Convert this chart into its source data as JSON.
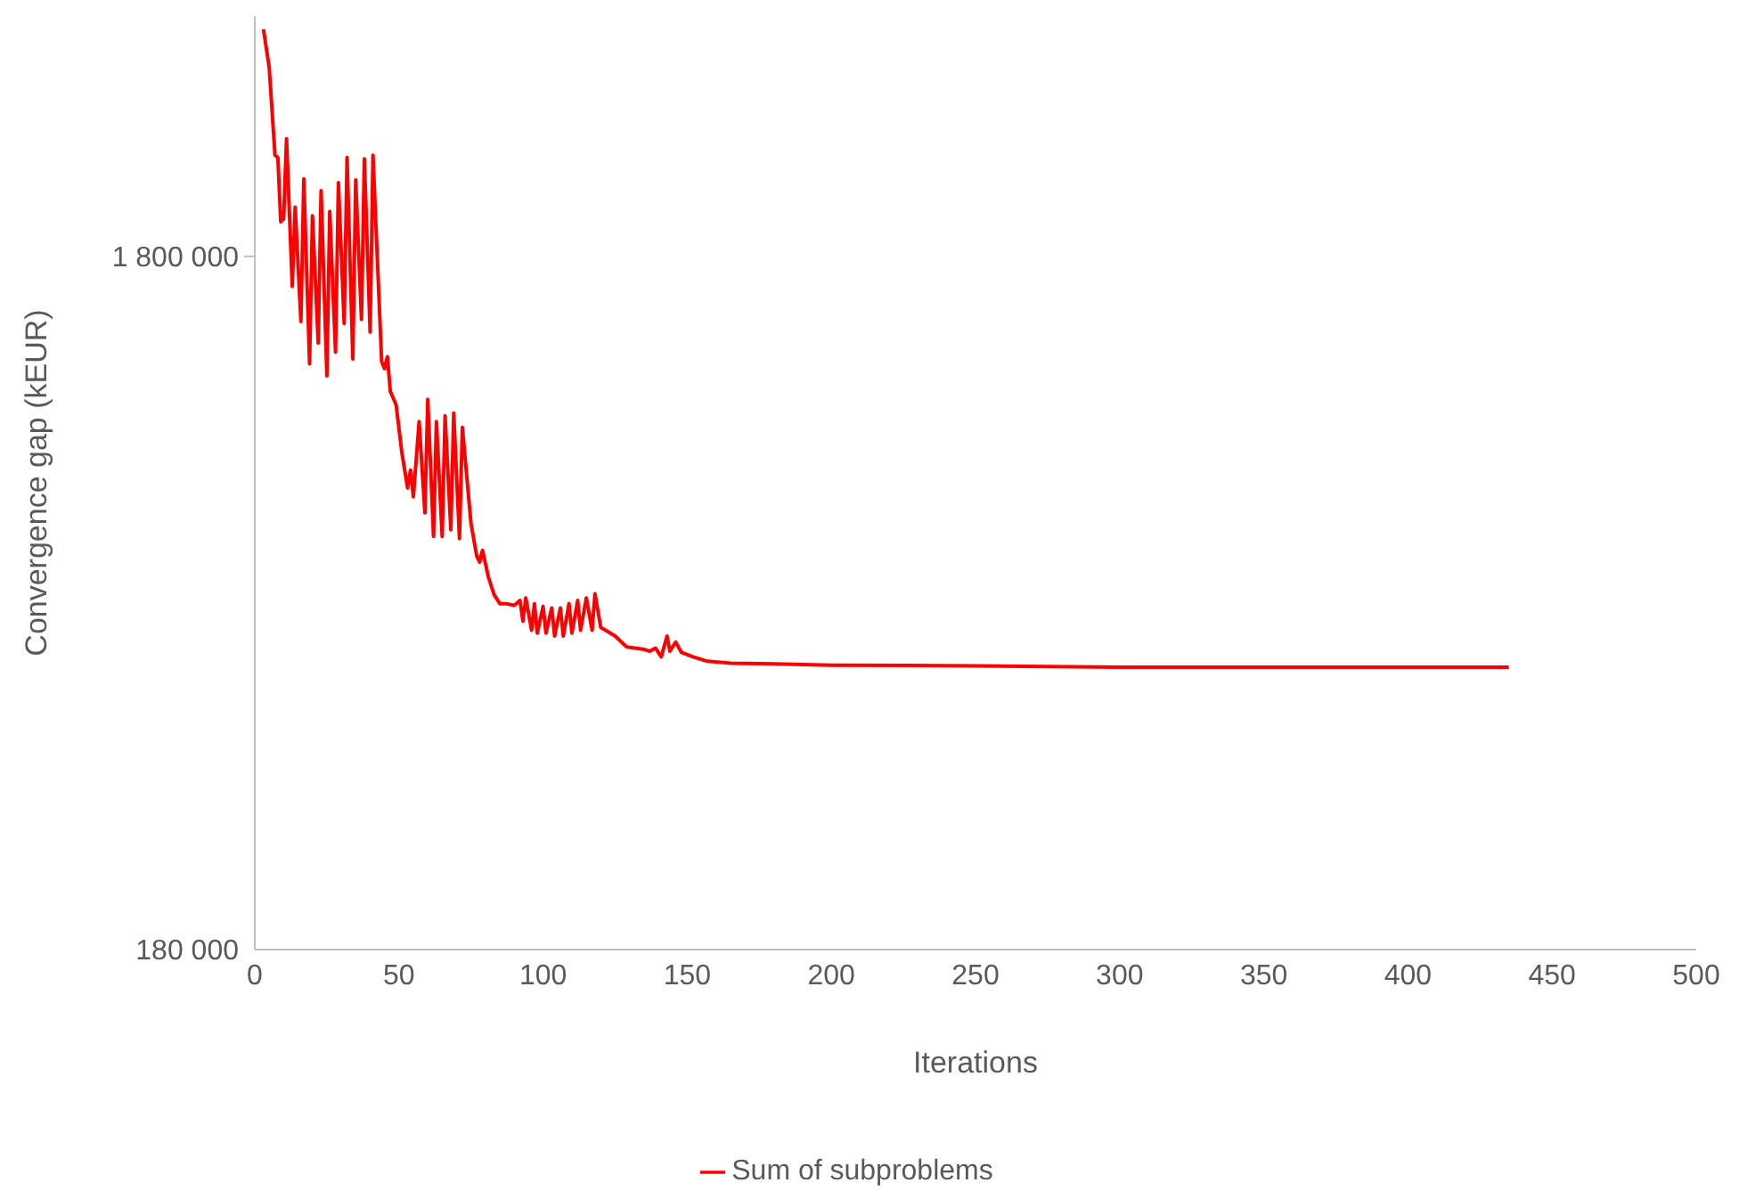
{
  "chart_data": {
    "type": "line",
    "xlabel": "Iterations",
    "ylabel": "Convergence gap (kEUR)",
    "log": "y",
    "grid": false,
    "legend": "bottom",
    "marker": "none",
    "line_style": "solid",
    "xlim": [
      0,
      500
    ],
    "xticks": [
      0,
      50,
      100,
      150,
      200,
      250,
      300,
      350,
      400,
      450,
      500
    ],
    "ylim": [
      180000,
      4000000
    ],
    "yticks": [
      {
        "value": 180000,
        "label": "180 000"
      },
      {
        "value": 1800000,
        "label": "1 800 000"
      }
    ],
    "series": [
      {
        "name": "Sum of subproblems",
        "color": "#ff0000",
        "x": [
          3,
          5,
          7,
          8,
          9,
          10,
          11,
          13,
          14,
          16,
          17,
          19,
          20,
          22,
          23,
          25,
          26,
          28,
          29,
          31,
          32,
          34,
          35,
          37,
          38,
          40,
          41,
          44,
          45,
          46,
          47,
          49,
          51,
          53,
          54,
          55,
          57,
          59,
          60,
          62,
          63,
          65,
          66,
          68,
          69,
          71,
          72,
          75,
          77,
          78,
          79,
          81,
          83,
          85,
          87,
          90,
          92,
          93,
          94,
          96,
          97,
          98,
          100,
          101,
          103,
          104,
          106,
          107,
          109,
          110,
          112,
          113,
          115,
          117,
          118,
          120,
          125,
          129,
          135,
          137,
          139,
          141,
          143,
          144,
          146,
          148,
          152,
          157,
          165,
          180,
          200,
          250,
          300,
          435
        ],
        "values": [
          3830000,
          3370000,
          2520000,
          2500000,
          2020000,
          2040000,
          2660000,
          1630000,
          2120000,
          1450000,
          2330000,
          1260000,
          2060000,
          1350000,
          2240000,
          1210000,
          2090000,
          1310000,
          2300000,
          1440000,
          2500000,
          1280000,
          2320000,
          1460000,
          2490000,
          1400000,
          2520000,
          1270000,
          1240000,
          1290000,
          1150000,
          1100000,
          939000,
          834000,
          885000,
          810000,
          1040000,
          768000,
          1120000,
          710000,
          1040000,
          710000,
          1060000,
          726000,
          1070000,
          705000,
          1020000,
          741000,
          665000,
          652000,
          678000,
          621000,
          585000,
          568000,
          568000,
          565000,
          574000,
          536000,
          579000,
          520000,
          568000,
          515000,
          563000,
          515000,
          560000,
          510000,
          560000,
          510000,
          568000,
          515000,
          574000,
          520000,
          579000,
          520000,
          587000,
          525000,
          510000,
          492000,
          488000,
          485000,
          490000,
          476000,
          510000,
          485000,
          500000,
          483000,
          476000,
          469000,
          466000,
          465000,
          463000,
          462000,
          460000,
          460000
        ]
      }
    ]
  }
}
